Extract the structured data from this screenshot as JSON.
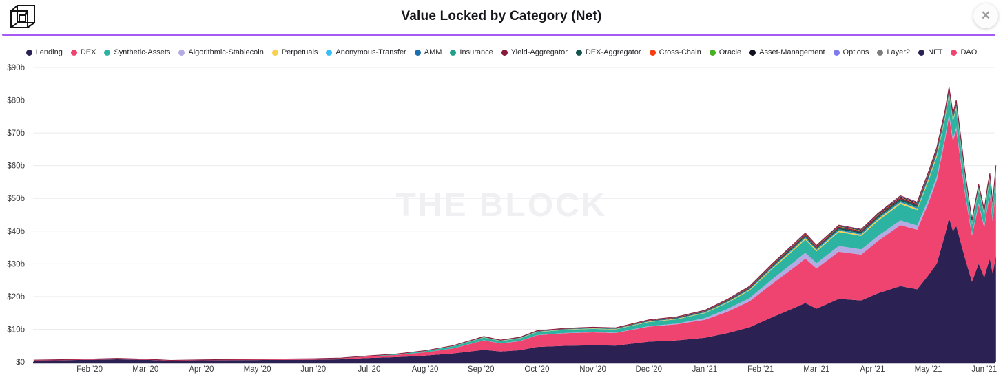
{
  "header": {
    "title": "Value Locked by Category (Net)"
  },
  "icons": {
    "logo": "the-block-cube-logo",
    "close": "✕"
  },
  "watermark": "THE BLOCK",
  "accent_colors": {
    "divider_purple": "#a55af4",
    "axis_line": "#2b2150",
    "gridline": "#ececf0",
    "tick_text": "#3c3c40"
  },
  "chart_data": {
    "type": "area",
    "stacked": true,
    "title": "Value Locked by Category (Net)",
    "grid": true,
    "legend_position": "top",
    "x_unit": "months since Jan 2020",
    "ylim": [
      0,
      90
    ],
    "y_tick_labels": [
      "$0",
      "$10b",
      "$20b",
      "$30b",
      "$40b",
      "$50b",
      "$60b",
      "$70b",
      "$80b",
      "$90b"
    ],
    "x_tick_months": [
      1,
      2,
      3,
      4,
      5,
      6,
      7,
      8,
      9,
      10,
      11,
      12,
      13,
      14,
      15,
      16,
      17
    ],
    "x_tick_labels": [
      "Feb '20",
      "Mar '20",
      "Apr '20",
      "May '20",
      "Jun '20",
      "Jul '20",
      "Aug '20",
      "Sep '20",
      "Oct '20",
      "Nov '20",
      "Dec '20",
      "Jan '21",
      "Feb '21",
      "Mar '21",
      "Apr '21",
      "May '21",
      "Jun '21"
    ],
    "top_edge_color": "#8a1a3c",
    "x": [
      0,
      0.5,
      1,
      1.5,
      2,
      2.45,
      3,
      3.5,
      4,
      4.5,
      5,
      5.5,
      6,
      6.5,
      7,
      7.5,
      8.05,
      8.35,
      8.7,
      9,
      9.5,
      10,
      10.4,
      11,
      11.5,
      12,
      12.4,
      12.8,
      13.2,
      13.6,
      13.8,
      14,
      14.4,
      14.8,
      15.1,
      15.5,
      15.8,
      16,
      16.15,
      16.3,
      16.37,
      16.44,
      16.5,
      16.65,
      16.78,
      16.9,
      17,
      17.06,
      17.1,
      17.15,
      17.21
    ],
    "minor_total": [
      0,
      0,
      0.01,
      0.01,
      0.01,
      0,
      0.01,
      0.01,
      0.01,
      0.01,
      0.02,
      0.02,
      0.04,
      0.07,
      0.12,
      0.22,
      0.36,
      0.31,
      0.37,
      0.45,
      0.49,
      0.53,
      0.52,
      0.7,
      0.76,
      0.9,
      1.1,
      1.3,
      1.6,
      1.9,
      2.0,
      1.85,
      2.1,
      2.05,
      2.3,
      2.55,
      2.45,
      2.8,
      2.9,
      2.55,
      2.4,
      2.45,
      2.75,
      2.0,
      1.55,
      1.85,
      1.7,
      1.95,
      2.0,
      1.8,
      2.1
    ],
    "stack_order": [
      "Lending",
      "DEX",
      "Algorithmic-Stablecoin",
      "Synthetic-Assets",
      "Perpetuals",
      "Anonymous-Transfer",
      "AMM",
      "Insurance",
      "DEX-Aggregator",
      "Yield-Aggregator",
      "Cross-Chain",
      "Oracle",
      "Asset-Management",
      "Options",
      "Layer2",
      "NFT",
      "DAO"
    ],
    "series": [
      {
        "name": "Lending",
        "color": "#2b2253",
        "values": [
          0.45,
          0.55,
          0.7,
          0.85,
          0.68,
          0.4,
          0.52,
          0.58,
          0.62,
          0.68,
          0.72,
          0.85,
          1.25,
          1.5,
          1.95,
          2.6,
          3.7,
          3.2,
          3.6,
          4.6,
          4.95,
          5.1,
          5.0,
          6.2,
          6.6,
          7.4,
          8.8,
          10.6,
          13.6,
          16.5,
          18.0,
          16.3,
          19.3,
          18.8,
          21.0,
          23.2,
          22.2,
          26.5,
          30.0,
          39.0,
          44.0,
          40.0,
          41.5,
          32.0,
          24.5,
          30.0,
          25.8,
          29.5,
          31.5,
          27.0,
          32.5
        ]
      },
      {
        "name": "DEX",
        "color": "#ef446f",
        "values": [
          0.12,
          0.14,
          0.17,
          0.21,
          0.16,
          0.1,
          0.13,
          0.15,
          0.17,
          0.19,
          0.22,
          0.28,
          0.45,
          0.65,
          1.0,
          1.55,
          2.9,
          2.45,
          2.8,
          3.55,
          3.85,
          3.95,
          3.85,
          4.6,
          4.9,
          5.5,
          6.5,
          7.9,
          10.2,
          12.4,
          13.6,
          12.3,
          14.4,
          14.0,
          16.0,
          18.6,
          18.2,
          22.0,
          25.5,
          29.0,
          31.0,
          27.5,
          29.5,
          20.0,
          14.0,
          18.0,
          15.2,
          18.0,
          19.5,
          16.0,
          20.5
        ]
      },
      {
        "name": "Synthetic-Assets",
        "color": "#2db3a1",
        "values": [
          0.03,
          0.04,
          0.05,
          0.06,
          0.05,
          0.02,
          0.04,
          0.05,
          0.06,
          0.07,
          0.08,
          0.1,
          0.15,
          0.22,
          0.38,
          0.6,
          0.8,
          0.7,
          0.78,
          0.9,
          0.95,
          1.0,
          1.0,
          1.25,
          1.32,
          1.5,
          1.85,
          2.3,
          3.1,
          3.7,
          4.0,
          3.6,
          4.25,
          4.1,
          4.6,
          5.0,
          4.7,
          5.5,
          6.0,
          5.6,
          5.8,
          5.3,
          5.5,
          4.2,
          3.0,
          3.9,
          3.4,
          3.9,
          4.1,
          3.5,
          4.4
        ]
      },
      {
        "name": "Algorithmic-Stablecoin",
        "color": "#b4abe4",
        "values": [
          0,
          0,
          0,
          0,
          0,
          0,
          0,
          0,
          0,
          0,
          0,
          0,
          0.01,
          0.01,
          0.02,
          0.03,
          0.04,
          0.04,
          0.05,
          0.05,
          0.06,
          0.07,
          0.08,
          0.15,
          0.22,
          0.5,
          0.85,
          1.0,
          1.4,
          1.7,
          1.8,
          1.6,
          1.75,
          1.6,
          1.55,
          1.45,
          1.3,
          1.2,
          1.1,
          0.85,
          0.8,
          0.75,
          0.75,
          0.6,
          0.45,
          0.55,
          0.5,
          0.55,
          0.55,
          0.5,
          0.6
        ]
      },
      {
        "name": "Perpetuals",
        "color": "#f9d14c",
        "share": 0.18
      },
      {
        "name": "Anonymous-Transfer",
        "color": "#38bdf8",
        "share": 0.05
      },
      {
        "name": "AMM",
        "color": "#1b6fae",
        "share": 0.09
      },
      {
        "name": "Insurance",
        "color": "#1fa18c",
        "share": 0.07
      },
      {
        "name": "Yield-Aggregator",
        "color": "#8a1a3c",
        "share": 0.15
      },
      {
        "name": "DEX-Aggregator",
        "color": "#14544f",
        "share": 0.22
      },
      {
        "name": "Cross-Chain",
        "color": "#fa3b0e",
        "share": 0.04
      },
      {
        "name": "Oracle",
        "color": "#46b021",
        "share": 0.03
      },
      {
        "name": "Asset-Management",
        "color": "#0e1020",
        "share": 0.08
      },
      {
        "name": "Options",
        "color": "#7f7af0",
        "share": 0.04
      },
      {
        "name": "Layer2",
        "color": "#7d7d7d",
        "share": 0.02
      },
      {
        "name": "NFT",
        "color": "#2b2253",
        "share": 0.01
      },
      {
        "name": "DAO",
        "color": "#ef446f",
        "share": 0.02
      }
    ]
  }
}
